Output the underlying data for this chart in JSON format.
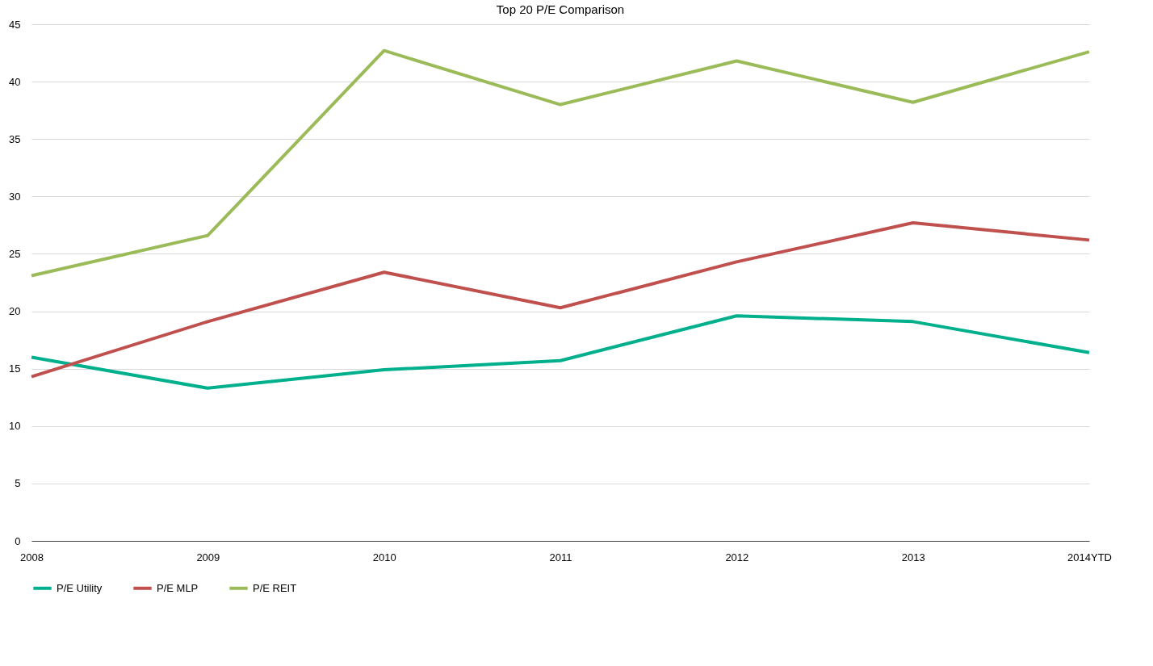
{
  "chart_data": {
    "type": "line",
    "title": "Top 20 P/E Comparison",
    "categories": [
      "2008",
      "2009",
      "2010",
      "2011",
      "2012",
      "2013",
      "2014YTD"
    ],
    "series": [
      {
        "name": "P/E Utility",
        "color": "#00b08c",
        "values": [
          16.0,
          13.3,
          14.9,
          15.7,
          19.6,
          19.1,
          16.4
        ]
      },
      {
        "name": "P/E MLP",
        "color": "#c0504d",
        "values": [
          14.3,
          19.1,
          23.4,
          20.3,
          24.3,
          27.7,
          26.2
        ]
      },
      {
        "name": "P/E REIT",
        "color": "#9bbb59",
        "values": [
          23.1,
          26.6,
          42.7,
          38.0,
          41.8,
          38.2,
          42.6
        ]
      }
    ],
    "ylim": [
      0,
      45
    ],
    "yticks": [
      0,
      5,
      10,
      15,
      20,
      25,
      30,
      35,
      40,
      45
    ],
    "grid": "y",
    "legend": "bottom",
    "marker": "none",
    "line_style": "solid"
  }
}
